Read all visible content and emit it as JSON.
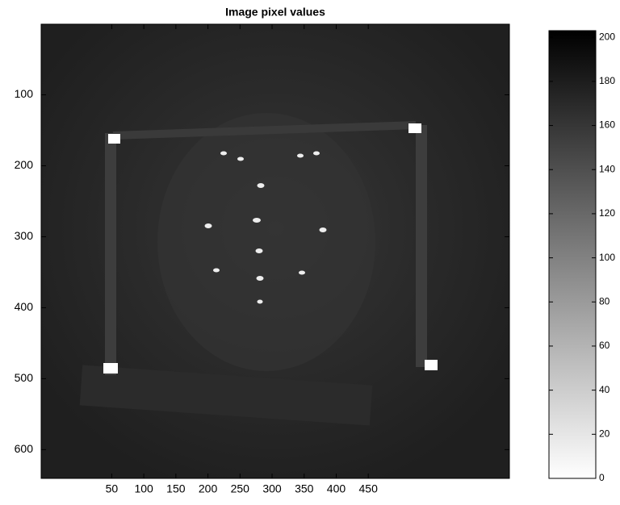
{
  "chart_data": {
    "type": "image",
    "title": "Image pixel values",
    "xlim": [
      -60,
      670
    ],
    "xticks": [
      50,
      100,
      150,
      200,
      250,
      300,
      350,
      400,
      450
    ],
    "ylim": [
      0.5,
      640.5
    ],
    "y_reversed": true,
    "yticks": [
      100,
      200,
      300,
      400,
      500,
      600
    ],
    "colorbar": {
      "clim": [
        0,
        203
      ],
      "ticks": [
        0,
        20,
        40,
        60,
        80,
        100,
        120,
        140,
        160,
        180,
        200
      ],
      "colors": [
        "#ffffff",
        "#000000"
      ]
    }
  }
}
